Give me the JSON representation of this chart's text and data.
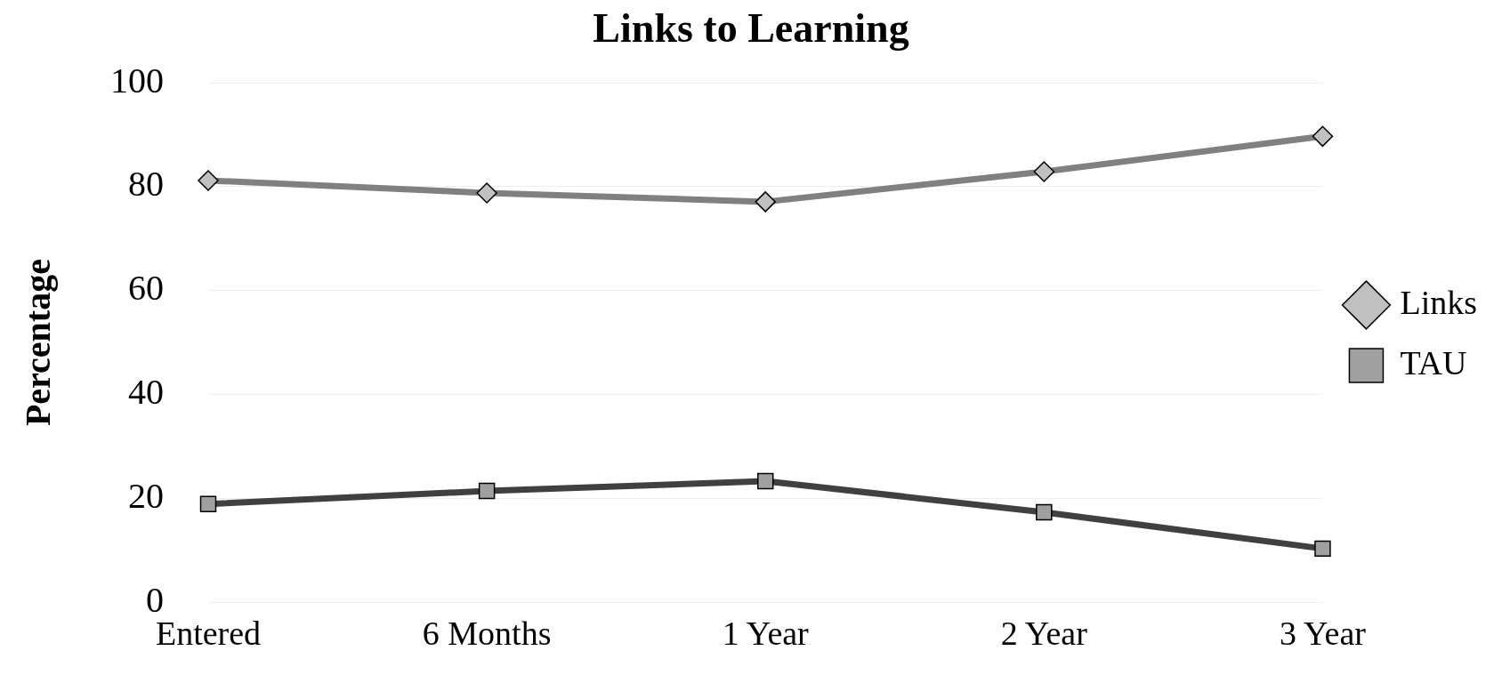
{
  "chart_data": {
    "type": "line",
    "title": "Links to Learning",
    "ylabel": "Percentage",
    "categories": [
      "Entered",
      "6 Months",
      "1 Year",
      "2 Year",
      "3 Year"
    ],
    "series": [
      {
        "name": "Links",
        "color": "#808080",
        "marker": "diamond",
        "values": [
          81.2,
          78.8,
          77.1,
          82.9,
          89.7
        ]
      },
      {
        "name": "TAU",
        "color": "#404040",
        "marker": "square",
        "values": [
          18.9,
          21.4,
          23.3,
          17.3,
          10.3
        ]
      }
    ],
    "ylim": [
      0,
      100
    ],
    "yticks": [
      0,
      20,
      40,
      60,
      80,
      100
    ],
    "grid": "y",
    "legend": "right",
    "line_style": "solid"
  }
}
